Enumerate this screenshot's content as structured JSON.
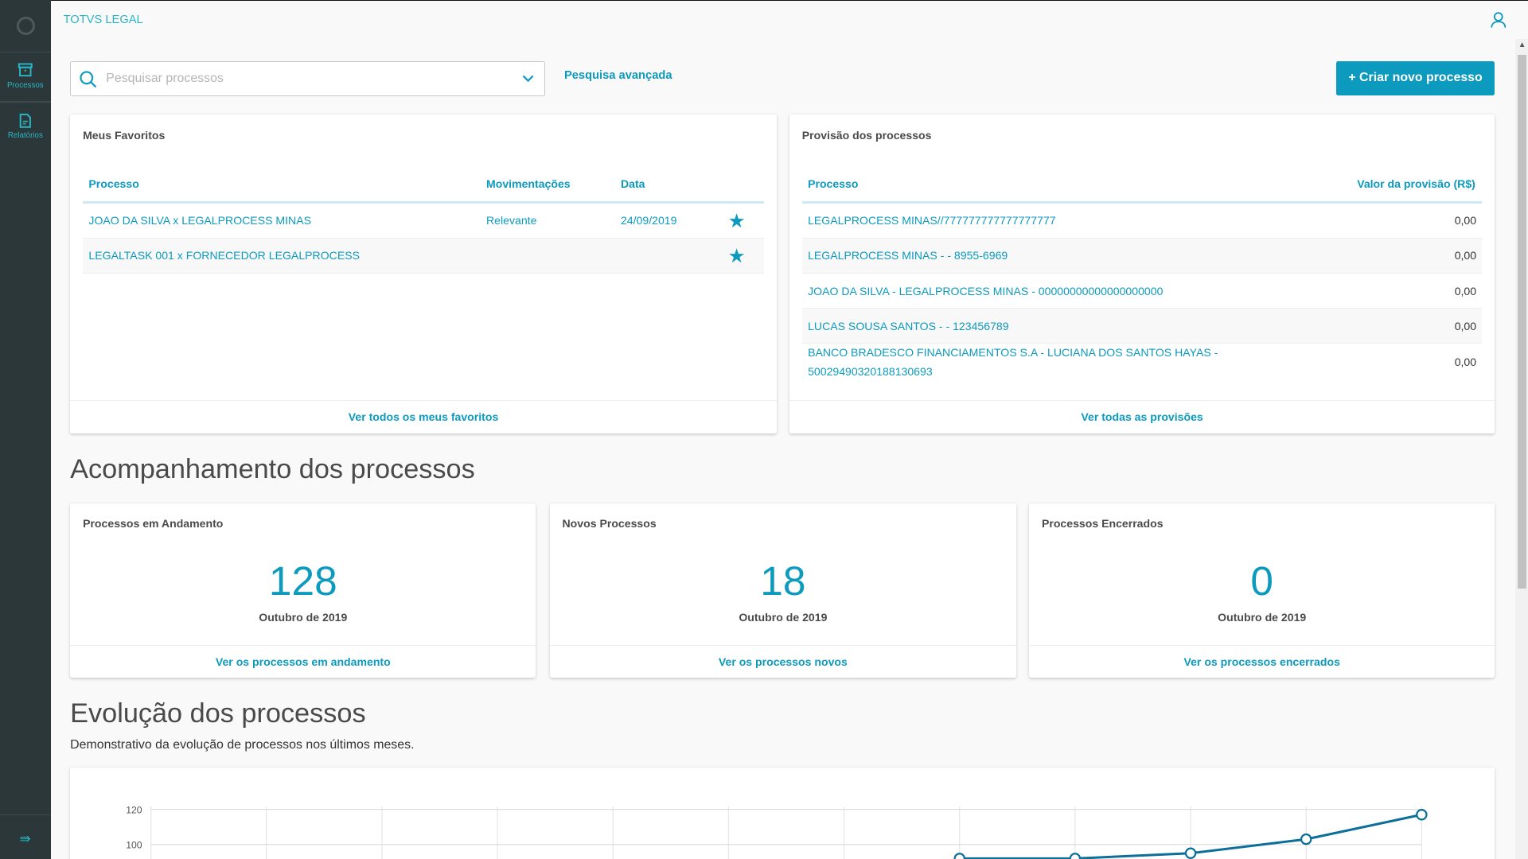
{
  "app": {
    "title": "TOTVS LEGAL"
  },
  "sidebar": {
    "items": [
      {
        "label": "Processos",
        "icon": "archive-icon"
      },
      {
        "label": "Relatórios",
        "icon": "document-icon"
      }
    ]
  },
  "search": {
    "placeholder": "Pesquisar processos",
    "advanced_label": "Pesquisa avançada"
  },
  "toolbar": {
    "new_label": "+ Criar novo processo"
  },
  "favorites": {
    "title": "Meus Favoritos",
    "columns": [
      "Processo",
      "Movimentações",
      "Data"
    ],
    "rows": [
      {
        "processo": "JOAO DA SILVA x LEGALPROCESS MINAS",
        "mov": "Relevante",
        "data": "24/09/2019",
        "starred": true
      },
      {
        "processo": "LEGALTASK 001 x FORNECEDOR LEGALPROCESS",
        "mov": "",
        "data": "",
        "starred": true
      }
    ],
    "footer": "Ver todos os meus favoritos"
  },
  "provision": {
    "title": "Provisão dos processos",
    "columns": [
      "Processo",
      "Valor da provisão (R$)"
    ],
    "rows": [
      {
        "processo": "LEGALPROCESS MINAS//777777777777777777",
        "valor": "0,00"
      },
      {
        "processo": "LEGALPROCESS MINAS - - 8955-6969",
        "valor": "0,00"
      },
      {
        "processo": "JOAO DA SILVA - LEGALPROCESS MINAS - 00000000000000000000",
        "valor": "0,00"
      },
      {
        "processo": "LUCAS SOUSA SANTOS - - 123456789",
        "valor": "0,00"
      },
      {
        "processo": "BANCO BRADESCO FINANCIAMENTOS S.A - LUCIANA DOS SANTOS HAYAS -",
        "processo2": "50029490320188130693",
        "valor": "0,00"
      }
    ],
    "footer": "Ver todas as provisões"
  },
  "tracking": {
    "title": "Acompanhamento dos processos",
    "cards": [
      {
        "title": "Processos em Andamento",
        "value": "128",
        "period": "Outubro de 2019",
        "link": "Ver os processos em andamento"
      },
      {
        "title": "Novos Processos",
        "value": "18",
        "period": "Outubro de 2019",
        "link": "Ver os processos novos"
      },
      {
        "title": "Processos Encerrados",
        "value": "0",
        "period": "Outubro de 2019",
        "link": "Ver os processos encerrados"
      }
    ]
  },
  "evolution": {
    "title": "Evolução dos processos",
    "description": "Demonstrativo da evolução de processos nos últimos meses."
  },
  "chart_data": {
    "type": "line",
    "yticks": [
      "120",
      "100"
    ],
    "ylim_visible": [
      88,
      125
    ],
    "values": [
      null,
      null,
      null,
      null,
      null,
      null,
      null,
      92,
      92,
      95,
      103,
      117
    ],
    "grid": true,
    "color": "#0c6f9a"
  }
}
